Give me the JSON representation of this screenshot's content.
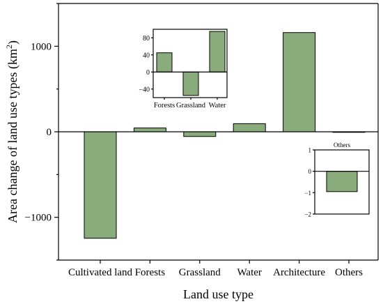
{
  "chart_data": [
    {
      "id": "main",
      "type": "bar",
      "xlabel": "Land use type",
      "ylabel_main": "Area change of land use types (km",
      "ylabel_sup": "2",
      "ylabel_close": ")",
      "categories": [
        "Cultivated land",
        "Forests",
        "Grassland",
        "Water",
        "Architecture",
        "Others"
      ],
      "values": [
        -1245,
        45,
        -55,
        95,
        1160,
        -1
      ],
      "ylim": [
        -1500,
        1500
      ],
      "yticks": [
        -1000,
        0,
        1000
      ],
      "ytick_labels": [
        "−1000",
        "0",
        "1000"
      ],
      "zero_line": true,
      "bar_color": "#8aab7c"
    },
    {
      "id": "inset-mid",
      "type": "bar",
      "categories": [
        "Forests",
        "Grassland",
        "Water"
      ],
      "values": [
        45,
        -55,
        95
      ],
      "ylim": [
        -60,
        100
      ],
      "yticks": [
        -40,
        0,
        40,
        80
      ],
      "ytick_labels": [
        "−40",
        "0",
        "40",
        "80"
      ],
      "bar_color": "#8aab7c"
    },
    {
      "id": "inset-others",
      "type": "bar",
      "title": "Others",
      "categories": [
        "Others"
      ],
      "values": [
        -0.95
      ],
      "ylim": [
        -2,
        1
      ],
      "yticks": [
        -2,
        -1,
        0,
        1
      ],
      "ytick_labels": [
        "−2",
        "−1",
        "0",
        "1"
      ],
      "bar_color": "#8aab7c"
    }
  ]
}
